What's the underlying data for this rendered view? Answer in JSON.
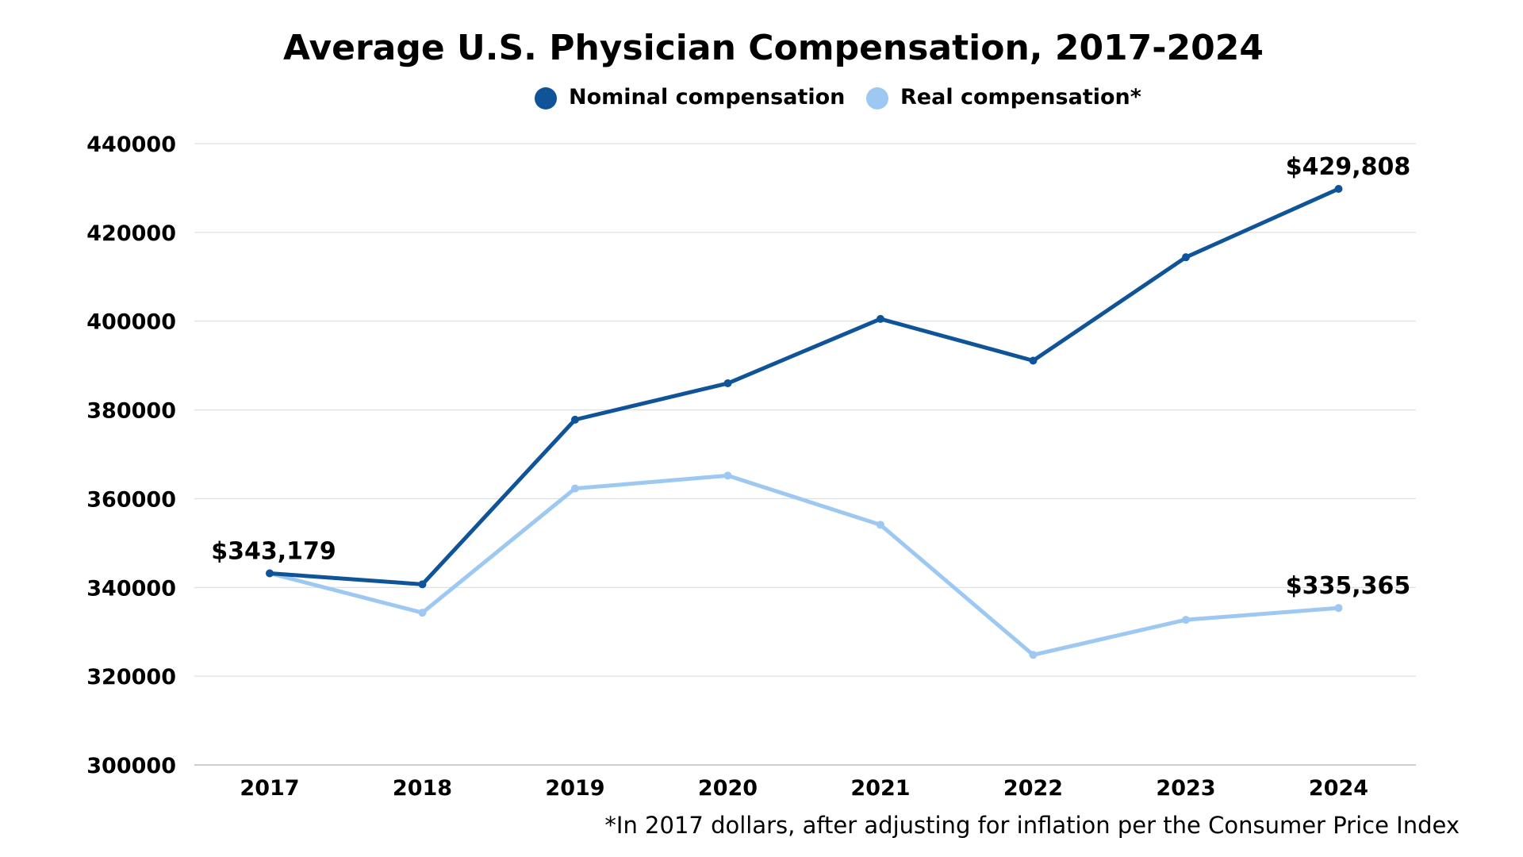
{
  "chart_data": {
    "type": "line",
    "title": "Average U.S. Physician Compensation, 2017-2024",
    "xlabel": "",
    "ylabel": "",
    "ylim": [
      300000,
      440000
    ],
    "y_ticks": [
      "300000",
      "320000",
      "340000",
      "360000",
      "380000",
      "400000",
      "420000",
      "440000"
    ],
    "categories": [
      "2017",
      "2018",
      "2019",
      "2020",
      "2021",
      "2022",
      "2023",
      "2024"
    ],
    "grid": "horizontal",
    "legend_position": "top-center",
    "series": [
      {
        "name": "Nominal compensation",
        "color": "#0F5499",
        "values": [
          343179,
          340700,
          377800,
          386000,
          400500,
          391100,
          414400,
          429808
        ]
      },
      {
        "name": "Real compensation*",
        "color": "#9DC8F2",
        "values": [
          343179,
          334300,
          362300,
          365200,
          354100,
          324800,
          332700,
          335365
        ]
      }
    ],
    "annotations": [
      {
        "series": 0,
        "index": 0,
        "text": "$343,179",
        "placement": "above"
      },
      {
        "series": 0,
        "index": 7,
        "text": "$429,808",
        "placement": "above"
      },
      {
        "series": 1,
        "index": 7,
        "text": "$335,365",
        "placement": "above"
      }
    ],
    "footnote": "*In 2017 dollars, after adjusting for inflation per the Consumer Price Index"
  }
}
